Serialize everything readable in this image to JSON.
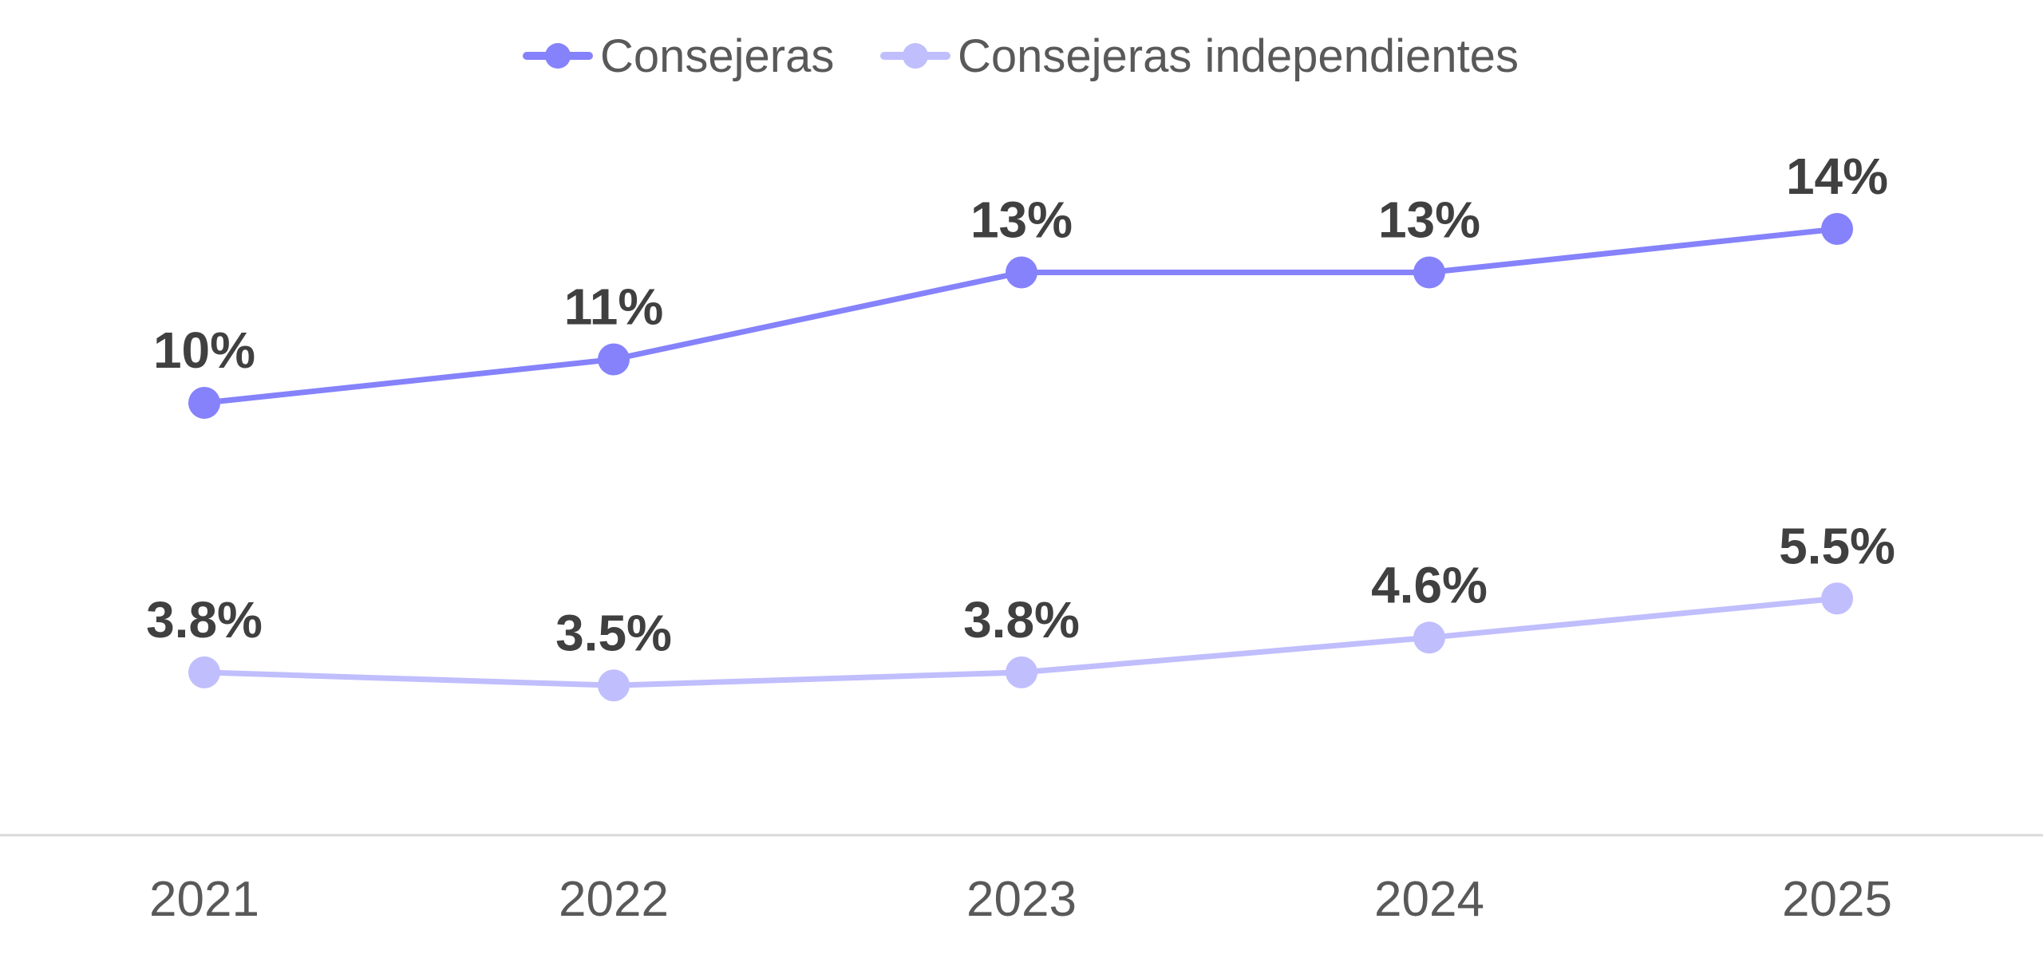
{
  "chart_data": {
    "type": "line",
    "title": "",
    "xlabel": "",
    "ylabel": "",
    "categories": [
      "2021",
      "2022",
      "2023",
      "2024",
      "2025"
    ],
    "ylim": [
      0,
      19.3
    ],
    "grid": false,
    "legend_position": "top-center",
    "series": [
      {
        "name": "Consejeras",
        "color": "#8582FB",
        "values": [
          10,
          11,
          13,
          13,
          14
        ],
        "labels": [
          "10%",
          "11%",
          "13%",
          "13%",
          "14%"
        ]
      },
      {
        "name": "Consejeras independientes",
        "color": "#C0BEFD",
        "values": [
          3.8,
          3.5,
          3.8,
          4.6,
          5.5
        ],
        "labels": [
          "3.8%",
          "3.5%",
          "3.8%",
          "4.6%",
          "5.5%"
        ]
      }
    ]
  }
}
